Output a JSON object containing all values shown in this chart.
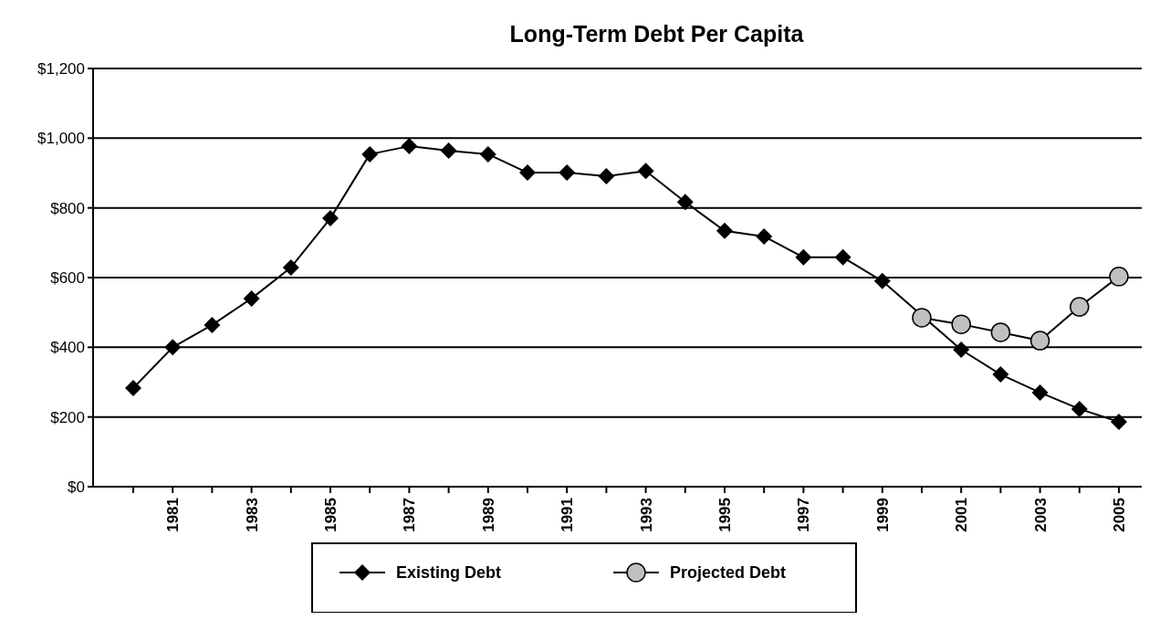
{
  "chart_data": {
    "type": "line",
    "title": "Long-Term Debt Per Capita",
    "categories": [
      null,
      "1981",
      null,
      "1983",
      null,
      "1985",
      null,
      "1987",
      null,
      "1989",
      null,
      "1991",
      null,
      "1993",
      null,
      "1995",
      null,
      "1997",
      null,
      "1999",
      null,
      "2001",
      null,
      "2003",
      null,
      "2005"
    ],
    "series": [
      {
        "name": "Existing Debt",
        "color": "#000000",
        "marker": "diamond",
        "values": [
          283,
          400,
          464,
          540,
          629,
          770,
          954,
          977,
          964,
          954,
          901,
          901,
          891,
          906,
          817,
          734,
          718,
          658,
          658,
          590,
          null,
          393,
          322,
          270,
          223,
          186
        ]
      },
      {
        "name": "Projected Debt",
        "color": "#c0c0c0",
        "marker": "circle",
        "values": [
          null,
          null,
          null,
          null,
          null,
          null,
          null,
          null,
          null,
          null,
          null,
          null,
          null,
          null,
          null,
          null,
          null,
          null,
          null,
          null,
          485,
          466,
          443,
          419,
          516,
          603
        ]
      }
    ],
    "ylim": [
      0,
      1200
    ],
    "yticks": [
      {
        "value": 0,
        "label": "$0"
      },
      {
        "value": 200,
        "label": "$200"
      },
      {
        "value": 400,
        "label": "$400"
      },
      {
        "value": 600,
        "label": "$600"
      },
      {
        "value": 800,
        "label": "$800"
      },
      {
        "value": 1000,
        "label": "$1,000"
      },
      {
        "value": 1200,
        "label": "$1,200"
      }
    ],
    "grid": "y",
    "legend": "bottom",
    "line_style": "solid"
  }
}
